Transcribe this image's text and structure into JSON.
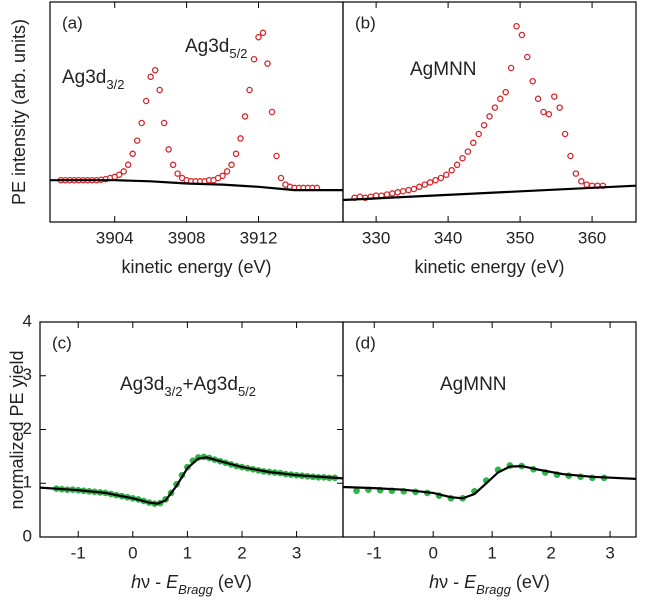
{
  "chart_data": [
    {
      "type": "scatter",
      "label": "(a)",
      "ylabel": "PE intensity (arb. units)",
      "xlabel": "kinetic energy (eV)",
      "xlim": [
        3900.4,
        3916.7
      ],
      "xticks": [
        3904,
        3908,
        3912
      ],
      "ylim": [
        0,
        1
      ],
      "annotations": [
        [
          {
            "text": "Ag3d",
            "sub": "3/2"
          }
        ],
        [
          {
            "text": "Ag3d",
            "sub": "5/2"
          }
        ]
      ],
      "series": [
        {
          "color": "#d7262b",
          "marker": "open-circle",
          "x": [
            3901,
            3901.25,
            3901.5,
            3901.75,
            3902,
            3902.25,
            3902.5,
            3902.75,
            3903,
            3903.25,
            3903.5,
            3903.75,
            3904,
            3904.25,
            3904.5,
            3904.75,
            3905,
            3905.25,
            3905.5,
            3905.75,
            3906,
            3906.25,
            3906.5,
            3906.75,
            3907,
            3907.25,
            3907.5,
            3907.75,
            3908,
            3908.25,
            3908.5,
            3908.75,
            3909,
            3909.25,
            3909.5,
            3909.75,
            3910,
            3910.25,
            3910.5,
            3910.75,
            3911,
            3911.25,
            3911.5,
            3911.75,
            3912,
            3912.25,
            3912.5,
            3912.75,
            3913,
            3913.25,
            3913.5,
            3913.75,
            3914,
            3914.25,
            3914.5,
            3914.75,
            3915,
            3915.25
          ],
          "values": [
            0.19,
            0.19,
            0.19,
            0.19,
            0.19,
            0.19,
            0.19,
            0.19,
            0.19,
            0.192,
            0.195,
            0.2,
            0.205,
            0.215,
            0.23,
            0.26,
            0.31,
            0.37,
            0.45,
            0.55,
            0.66,
            0.69,
            0.6,
            0.45,
            0.33,
            0.26,
            0.22,
            0.2,
            0.19,
            0.185,
            0.185,
            0.185,
            0.185,
            0.19,
            0.19,
            0.2,
            0.21,
            0.23,
            0.26,
            0.31,
            0.38,
            0.48,
            0.6,
            0.74,
            0.84,
            0.86,
            0.72,
            0.5,
            0.3,
            0.2,
            0.17,
            0.16,
            0.155,
            0.155,
            0.155,
            0.155,
            0.155,
            0.155
          ]
        },
        {
          "color": "#000000",
          "marker": "line",
          "x": [
            3900.4,
            3904,
            3906,
            3908,
            3910,
            3912,
            3914,
            3916.7
          ],
          "values": [
            0.19,
            0.19,
            0.185,
            0.175,
            0.17,
            0.16,
            0.145,
            0.145
          ]
        }
      ]
    },
    {
      "type": "scatter",
      "label": "(b)",
      "xlabel": "kinetic energy (eV)",
      "xlim": [
        325.4,
        366.1
      ],
      "xticks": [
        330,
        340,
        350,
        360
      ],
      "ylim": [
        0,
        1
      ],
      "annotations": [
        [
          {
            "text": "AgMNN"
          }
        ]
      ],
      "series": [
        {
          "color": "#d7262b",
          "marker": "open-circle",
          "x": [
            327,
            327.75,
            328.5,
            329.25,
            330,
            330.75,
            331.5,
            332.25,
            333,
            333.75,
            334.5,
            335.25,
            336,
            336.75,
            337.5,
            338.25,
            339,
            339.75,
            340.5,
            341.25,
            342,
            342.75,
            343.5,
            344.25,
            345,
            345.75,
            346.5,
            347.25,
            348,
            348.75,
            349.5,
            350.25,
            351,
            351.75,
            352.5,
            353.25,
            354,
            354.75,
            355.5,
            356.25,
            357,
            357.75,
            358.5,
            359.25,
            360,
            360.75,
            361.5
          ],
          "values": [
            0.11,
            0.115,
            0.11,
            0.115,
            0.12,
            0.12,
            0.125,
            0.13,
            0.135,
            0.14,
            0.145,
            0.15,
            0.16,
            0.17,
            0.18,
            0.19,
            0.2,
            0.215,
            0.235,
            0.26,
            0.29,
            0.32,
            0.36,
            0.4,
            0.44,
            0.48,
            0.52,
            0.56,
            0.59,
            0.7,
            0.89,
            0.85,
            0.75,
            0.64,
            0.56,
            0.5,
            0.49,
            0.57,
            0.52,
            0.4,
            0.3,
            0.22,
            0.185,
            0.17,
            0.165,
            0.165,
            0.165
          ]
        },
        {
          "color": "#000000",
          "marker": "line",
          "x": [
            325.4,
            366.1
          ],
          "values": [
            0.1,
            0.165
          ]
        }
      ]
    },
    {
      "type": "scatter",
      "label": "(c)",
      "ylabel": "normalized PE yield",
      "xlabel": [
        {
          "text": "h",
          "italic": true
        },
        {
          "text": "ν - "
        },
        {
          "text": "E",
          "italic": true
        },
        {
          "text": "Bragg",
          "italic": true,
          "baseline": "sub"
        },
        {
          "text": " (eV)"
        }
      ],
      "xlim": [
        -1.7,
        3.85
      ],
      "xticks": [
        -1,
        0,
        1,
        2,
        3
      ],
      "ylim": [
        0,
        4
      ],
      "yticks": [
        0,
        1,
        2,
        3,
        4
      ],
      "annotations": [
        [
          {
            "text": "Ag3d",
            "sub": "3/2"
          },
          {
            "text": "+Ag3d",
            "sub": "5/2"
          }
        ]
      ],
      "series": [
        {
          "color": "#2fb44a",
          "marker": "circle",
          "x": [
            -1.4,
            -1.3,
            -1.2,
            -1.1,
            -1.0,
            -0.9,
            -0.8,
            -0.7,
            -0.6,
            -0.5,
            -0.4,
            -0.3,
            -0.2,
            -0.1,
            0.0,
            0.1,
            0.2,
            0.3,
            0.4,
            0.5,
            0.6,
            0.7,
            0.8,
            0.9,
            1.0,
            1.1,
            1.2,
            1.3,
            1.4,
            1.5,
            1.6,
            1.7,
            1.8,
            1.9,
            2.0,
            2.1,
            2.2,
            2.3,
            2.4,
            2.5,
            2.6,
            2.7,
            2.8,
            2.9,
            3.0,
            3.1,
            3.2,
            3.3,
            3.4,
            3.5,
            3.6,
            3.7
          ],
          "values": [
            0.9,
            0.89,
            0.88,
            0.88,
            0.87,
            0.86,
            0.85,
            0.84,
            0.83,
            0.82,
            0.8,
            0.78,
            0.76,
            0.74,
            0.72,
            0.7,
            0.67,
            0.64,
            0.62,
            0.63,
            0.7,
            0.82,
            0.98,
            1.15,
            1.3,
            1.42,
            1.48,
            1.49,
            1.47,
            1.44,
            1.41,
            1.38,
            1.35,
            1.32,
            1.3,
            1.28,
            1.26,
            1.24,
            1.22,
            1.21,
            1.2,
            1.19,
            1.17,
            1.16,
            1.15,
            1.14,
            1.13,
            1.12,
            1.11,
            1.11,
            1.1,
            1.1
          ]
        },
        {
          "color": "#000000",
          "marker": "line",
          "x": [
            -1.7,
            -1,
            -0.5,
            0,
            0.3,
            0.45,
            0.6,
            0.8,
            1.0,
            1.2,
            1.35,
            1.6,
            2,
            2.5,
            3,
            3.85
          ],
          "values": [
            0.92,
            0.87,
            0.82,
            0.72,
            0.64,
            0.62,
            0.68,
            0.95,
            1.28,
            1.46,
            1.48,
            1.41,
            1.3,
            1.21,
            1.15,
            1.09
          ]
        }
      ]
    },
    {
      "type": "scatter",
      "label": "(d)",
      "xlabel": [
        {
          "text": "h",
          "italic": true
        },
        {
          "text": "ν - "
        },
        {
          "text": "E",
          "italic": true
        },
        {
          "text": "Bragg",
          "italic": true,
          "baseline": "sub"
        },
        {
          "text": " (eV)"
        }
      ],
      "xlim": [
        -1.53,
        3.44
      ],
      "xticks": [
        -1,
        0,
        1,
        2,
        3
      ],
      "ylim": [
        0,
        4
      ],
      "annotations": [
        [
          {
            "text": "AgMNN"
          }
        ]
      ],
      "series": [
        {
          "color": "#2fb44a",
          "marker": "circle",
          "x": [
            -1.3,
            -1.1,
            -0.9,
            -0.7,
            -0.5,
            -0.3,
            -0.1,
            0.1,
            0.3,
            0.5,
            0.7,
            0.9,
            1.1,
            1.3,
            1.5,
            1.7,
            1.9,
            2.1,
            2.3,
            2.5,
            2.7,
            2.9
          ],
          "values": [
            0.86,
            0.88,
            0.87,
            0.86,
            0.85,
            0.84,
            0.82,
            0.77,
            0.72,
            0.72,
            0.85,
            1.05,
            1.25,
            1.33,
            1.32,
            1.26,
            1.2,
            1.16,
            1.14,
            1.12,
            1.1,
            1.1
          ]
        },
        {
          "color": "#000000",
          "marker": "line",
          "x": [
            -1.53,
            -1,
            -0.5,
            0,
            0.3,
            0.5,
            0.7,
            0.9,
            1.1,
            1.3,
            1.5,
            1.8,
            2.2,
            2.7,
            3.44
          ],
          "values": [
            0.93,
            0.91,
            0.88,
            0.82,
            0.74,
            0.72,
            0.8,
            1.0,
            1.2,
            1.31,
            1.32,
            1.25,
            1.17,
            1.12,
            1.08
          ]
        }
      ]
    }
  ]
}
